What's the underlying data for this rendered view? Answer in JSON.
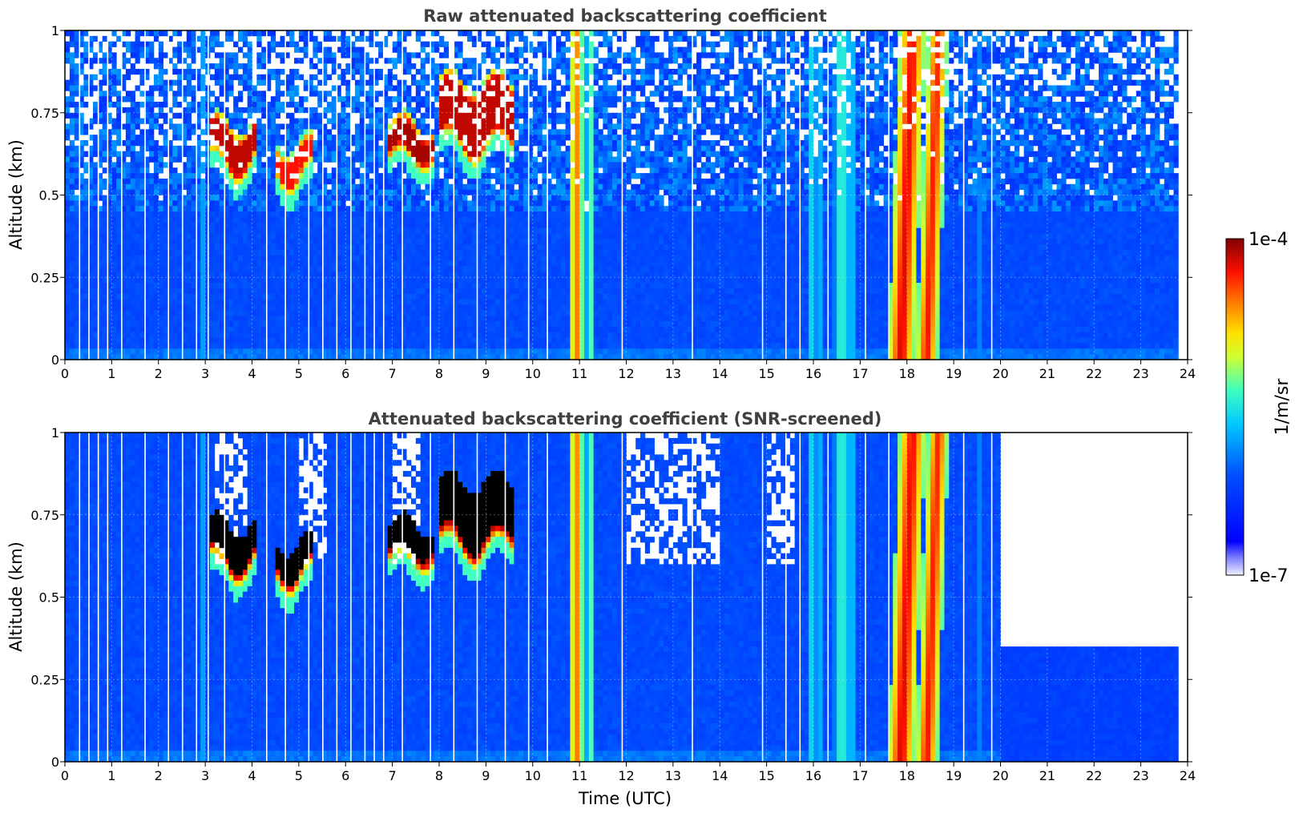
{
  "chart_data": [
    {
      "type": "heatmap",
      "title": "Raw attenuated backscattering coefficient",
      "xlabel": "",
      "ylabel": "Altitude (km)",
      "xlim": [
        0,
        24
      ],
      "ylim": [
        0,
        1
      ],
      "xticks": [
        "0",
        "1",
        "2",
        "3",
        "4",
        "5",
        "6",
        "7",
        "8",
        "9",
        "10",
        "11",
        "12",
        "13",
        "14",
        "15",
        "16",
        "17",
        "18",
        "19",
        "20",
        "21",
        "22",
        "23",
        "24"
      ],
      "yticks": [
        "0",
        "0.25",
        "0.5",
        "0.75",
        "1"
      ],
      "grid": true,
      "screened": false,
      "data_end_hour": 23.8,
      "features": [
        {
          "kind": "rain_column",
          "t0": 10.8,
          "t1": 11.05,
          "level": 0.82
        },
        {
          "kind": "rain_column",
          "t0": 11.15,
          "t1": 11.3,
          "level": 0.62
        },
        {
          "kind": "rain_column",
          "t0": 17.75,
          "t1": 18.3,
          "level": 0.92
        },
        {
          "kind": "rain_column",
          "t0": 18.35,
          "t1": 18.75,
          "level": 0.88
        },
        {
          "kind": "light_column",
          "t0": 16.5,
          "t1": 16.9,
          "level": 0.55
        },
        {
          "kind": "light_column",
          "t0": 15.9,
          "t1": 16.15,
          "level": 0.5
        },
        {
          "kind": "cloud_layer",
          "t0": 3.1,
          "t1": 4.1,
          "alt_bottom": 0.56,
          "alt_top": 0.72,
          "level": 0.95
        },
        {
          "kind": "cloud_layer",
          "t0": 4.5,
          "t1": 5.3,
          "alt_bottom": 0.52,
          "alt_top": 0.66,
          "level": 0.9
        },
        {
          "kind": "cloud_layer",
          "t0": 6.9,
          "t1": 7.9,
          "alt_bottom": 0.58,
          "alt_top": 0.72,
          "level": 0.97
        },
        {
          "kind": "cloud_layer",
          "t0": 8.0,
          "t1": 9.6,
          "alt_bottom": 0.62,
          "alt_top": 0.85,
          "level": 0.95
        }
      ]
    },
    {
      "type": "heatmap",
      "title": "Attenuated backscattering coefficient (SNR-screened)",
      "xlabel": "Time (UTC)",
      "ylabel": "Altitude (km)",
      "xlim": [
        0,
        24
      ],
      "ylim": [
        0,
        1
      ],
      "xticks": [
        "0",
        "1",
        "2",
        "3",
        "4",
        "5",
        "6",
        "7",
        "8",
        "9",
        "10",
        "11",
        "12",
        "13",
        "14",
        "15",
        "16",
        "17",
        "18",
        "19",
        "20",
        "21",
        "22",
        "23",
        "24"
      ],
      "yticks": [
        "0",
        "0.25",
        "0.5",
        "0.75",
        "1"
      ],
      "grid": true,
      "screened": true,
      "data_end_hour": 23.8,
      "late_ceiling_km": 0.35
    }
  ],
  "colorbar": {
    "label": "1/m/sr",
    "max_label": "1e-4",
    "min_label": "1e-7",
    "scale": "log",
    "colormap": "jet"
  }
}
